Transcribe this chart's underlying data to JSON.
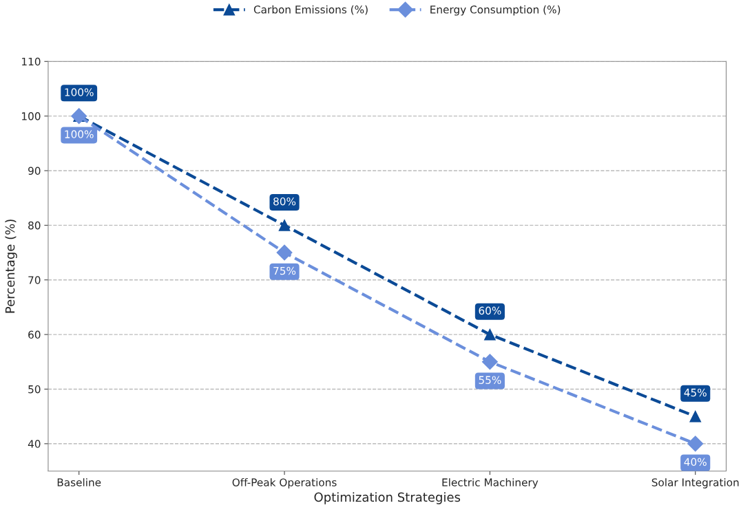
{
  "chart_data": {
    "type": "line",
    "xlabel": "Optimization Strategies",
    "ylabel": "Percentage (%)",
    "categories": [
      "Baseline",
      "Off-Peak Operations",
      "Electric Machinery",
      "Solar Integration"
    ],
    "series": [
      {
        "name": "Carbon Emissions (%)",
        "color": "#0b4a96",
        "values": [
          100,
          80,
          60,
          45
        ],
        "marker": "triangle",
        "value_labels": [
          "100%",
          "80%",
          "60%",
          "45%"
        ]
      },
      {
        "name": "Energy Consumption (%)",
        "color": "#6b8fdc",
        "values": [
          100,
          75,
          55,
          40
        ],
        "marker": "diamond",
        "value_labels": [
          "100%",
          "75%",
          "55%",
          "40%"
        ]
      }
    ],
    "ylim": [
      35,
      110
    ],
    "yticks": [
      40,
      50,
      60,
      70,
      80,
      90,
      100,
      110
    ],
    "grid": "y",
    "legend": "top",
    "line_style": "dashed"
  }
}
